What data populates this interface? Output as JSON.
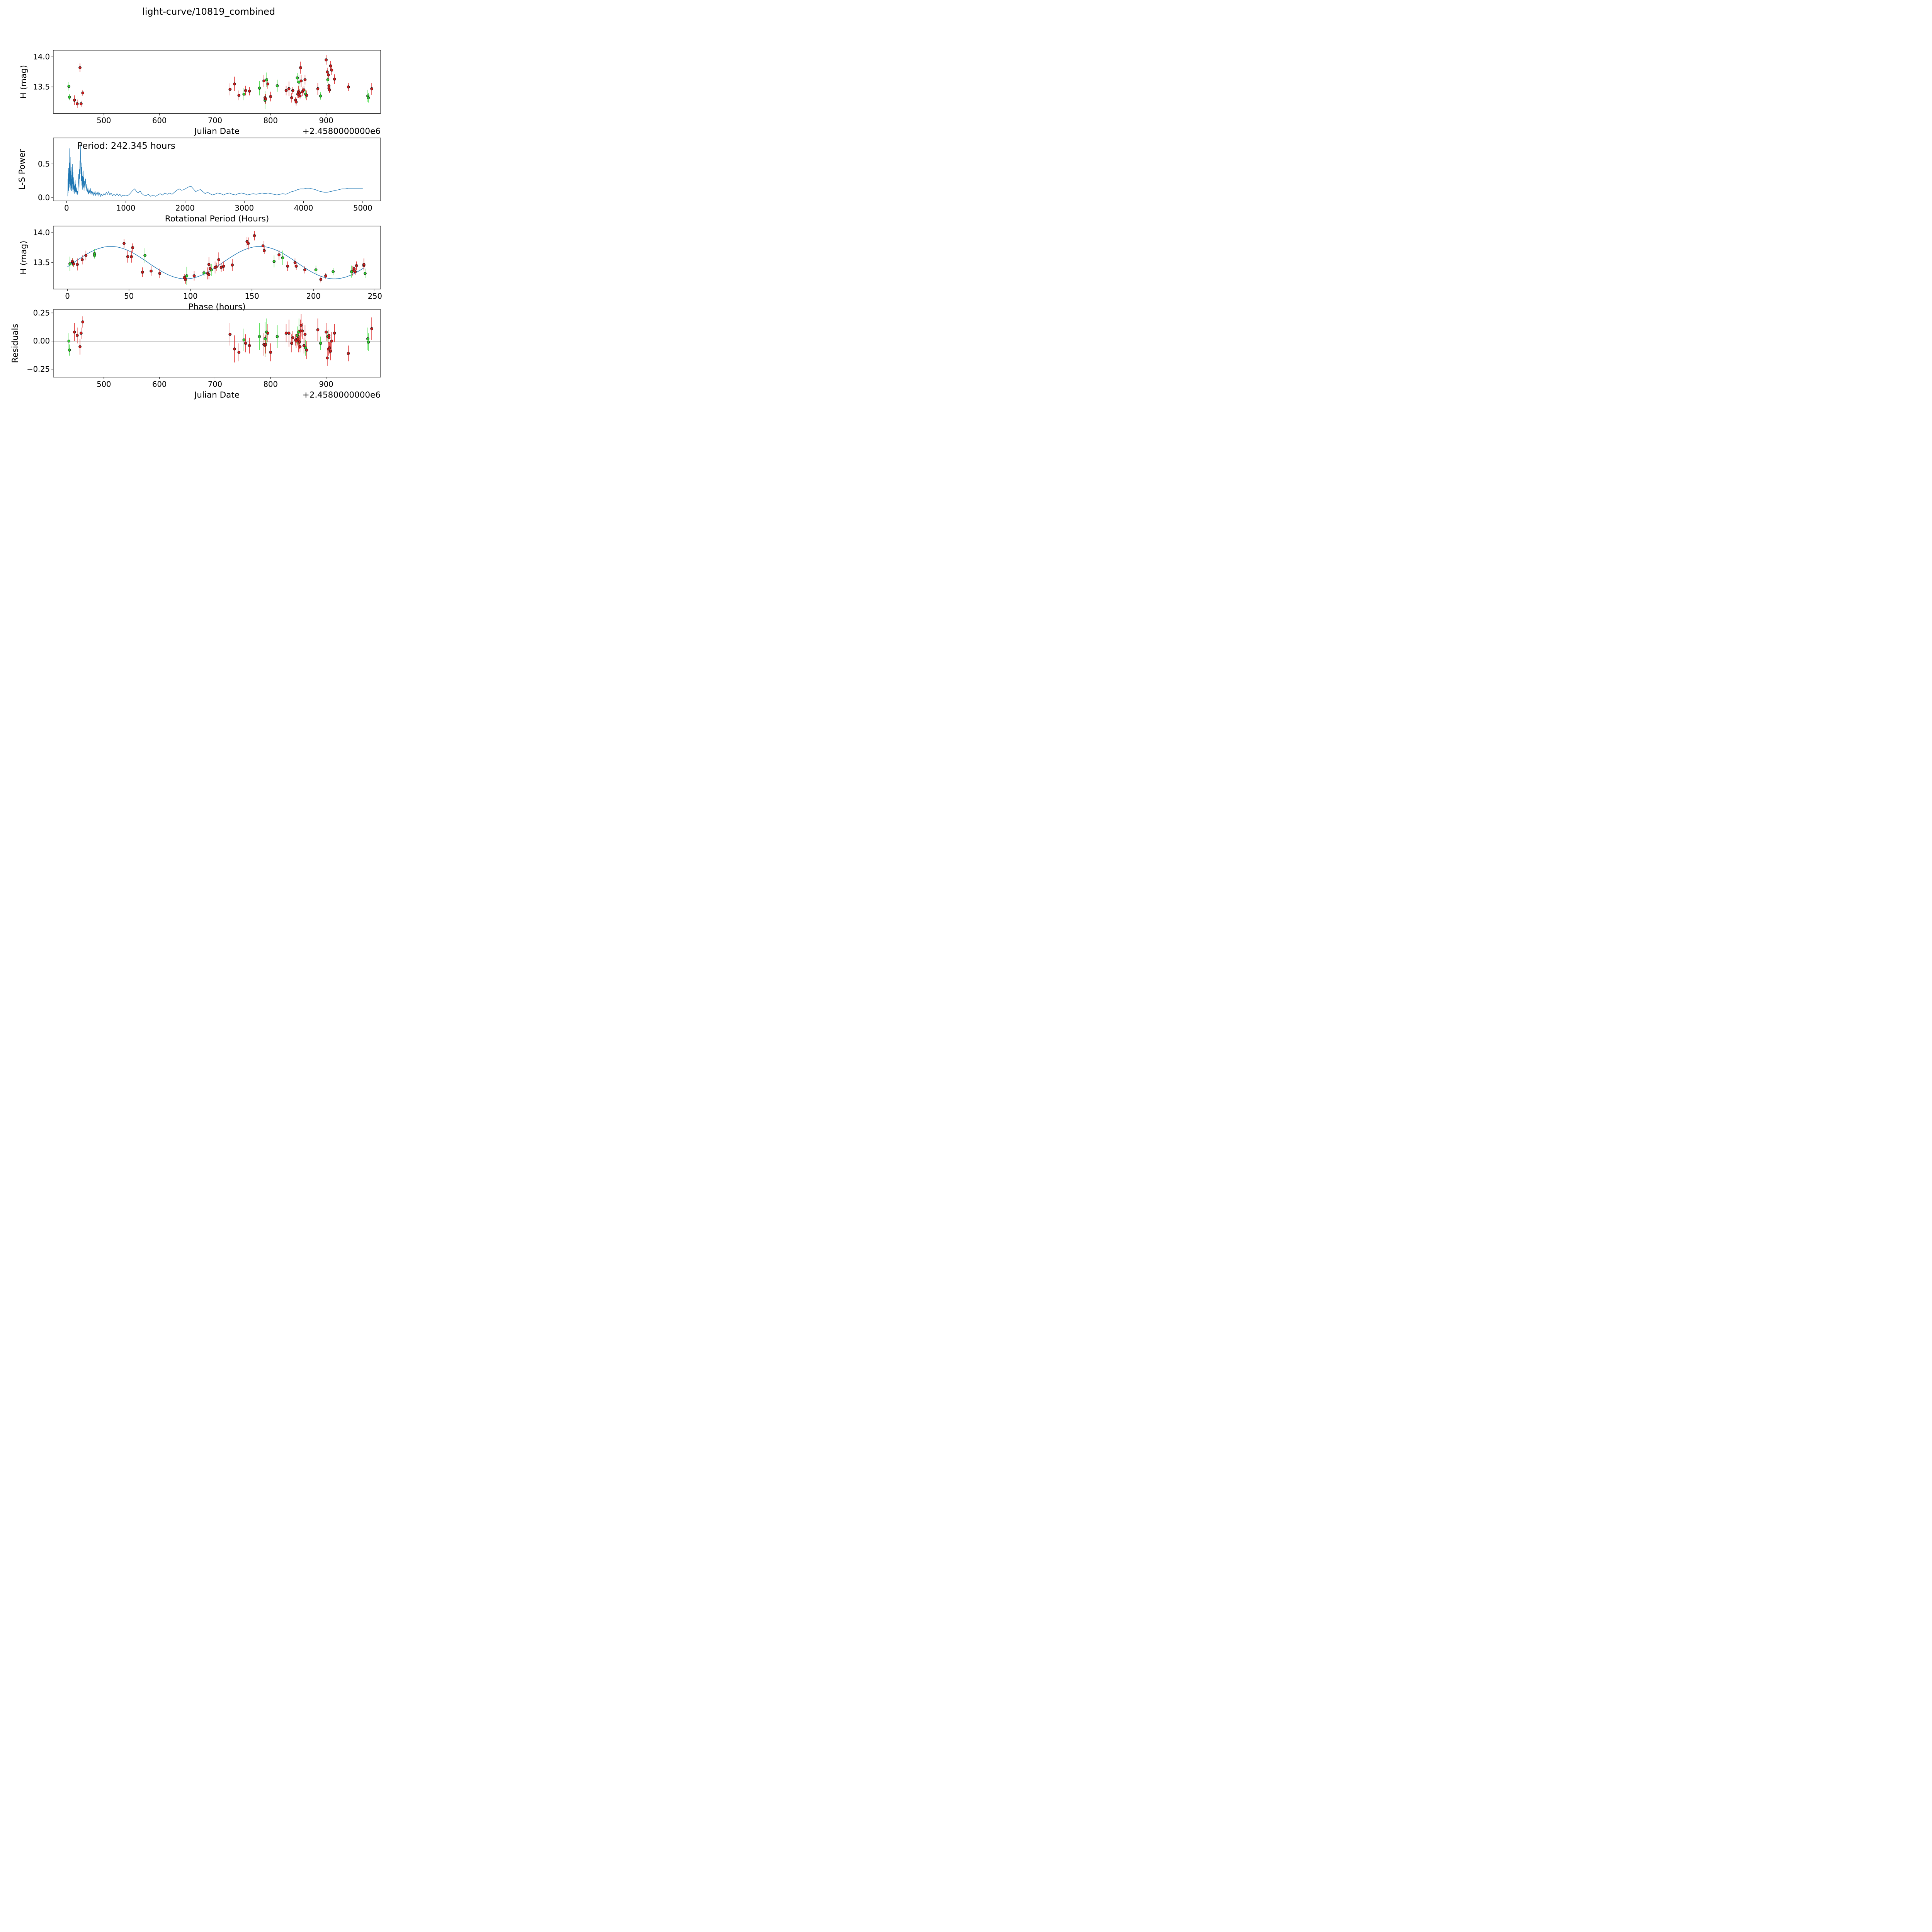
{
  "figure": {
    "title": "light-curve/10819_combined"
  },
  "colors": {
    "marker_red": "#d01a1a",
    "marker_green": "#2ed12e",
    "errorbar_red": "#e03030",
    "errorbar_green": "#57e057",
    "curve_blue": "#1f77b4",
    "axis_black": "#000000"
  },
  "observations_fields": [
    "color",
    "jd_minus_2458000000",
    "h_mag",
    "err_mag",
    "phase_hours",
    "residual_mag"
  ],
  "observations": [
    [
      "g",
      437,
      13.51,
      0.07,
      4,
      0.0
    ],
    [
      "g",
      438,
      13.33,
      0.05,
      111,
      -0.08
    ],
    [
      "r",
      447,
      13.28,
      0.08,
      103,
      0.08
    ],
    [
      "r",
      452,
      13.22,
      0.07,
      96,
      0.05
    ],
    [
      "r",
      457,
      13.82,
      0.07,
      46,
      -0.05
    ],
    [
      "r",
      459,
      13.22,
      0.05,
      206,
      0.07
    ],
    [
      "r",
      462,
      13.4,
      0.05,
      233,
      0.17
    ],
    [
      "r",
      727,
      13.46,
      0.1,
      134,
      0.06
    ],
    [
      "r",
      735,
      13.55,
      0.12,
      123,
      -0.07
    ],
    [
      "r",
      743,
      13.36,
      0.08,
      68,
      -0.1
    ],
    [
      "g",
      752,
      13.38,
      0.1,
      117,
      0.01
    ],
    [
      "r",
      755,
      13.44,
      0.08,
      127,
      -0.02
    ],
    [
      "r",
      762,
      13.43,
      0.07,
      121,
      -0.04
    ],
    [
      "g",
      780,
      13.48,
      0.12,
      2,
      0.04
    ],
    [
      "r",
      788,
      13.6,
      0.1,
      49,
      -0.03
    ],
    [
      "r",
      790,
      13.32,
      0.1,
      114,
      -0.04
    ],
    [
      "g",
      790,
      13.28,
      0.15,
      97,
      0.02
    ],
    [
      "r",
      791,
      13.3,
      0.08,
      115,
      -0.03
    ],
    [
      "g",
      793,
      13.62,
      0.12,
      63,
      0.08
    ],
    [
      "r",
      795,
      13.55,
      0.08,
      12,
      0.07
    ],
    [
      "r",
      800,
      13.34,
      0.08,
      61,
      -0.1
    ],
    [
      "g",
      812,
      13.52,
      0.1,
      168,
      0.04
    ],
    [
      "r",
      828,
      13.44,
      0.08,
      179,
      0.07
    ],
    [
      "r",
      833,
      13.47,
      0.12,
      115,
      0.07
    ],
    [
      "r",
      838,
      13.32,
      0.08,
      75,
      -0.02
    ],
    [
      "r",
      840,
      13.44,
      0.06,
      186,
      0.03
    ],
    [
      "r",
      845,
      13.28,
      0.05,
      210,
      0.01
    ],
    [
      "r",
      846,
      13.25,
      0.06,
      95,
      0.0
    ],
    [
      "g",
      848,
      13.65,
      0.08,
      22,
      0.05
    ],
    [
      "r",
      849,
      13.38,
      0.06,
      193,
      0.02
    ],
    [
      "r",
      850,
      13.42,
      0.1,
      120,
      0.0
    ],
    [
      "g",
      851,
      13.58,
      0.12,
      175,
      0.08
    ],
    [
      "r",
      852,
      13.4,
      0.06,
      116,
      -0.01
    ],
    [
      "r",
      853,
      13.35,
      0.05,
      234,
      -0.05
    ],
    [
      "r",
      854,
      13.82,
      0.1,
      147,
      0.09
    ],
    [
      "r",
      855,
      13.6,
      0.1,
      52,
      0.14
    ],
    [
      "r",
      857,
      13.42,
      0.07,
      125,
      0.09
    ],
    [
      "r",
      860,
      13.45,
      0.07,
      235,
      -0.04
    ],
    [
      "r",
      862,
      13.62,
      0.08,
      15,
      0.06
    ],
    [
      "g",
      863,
      13.38,
      0.07,
      202,
      -0.06
    ],
    [
      "r",
      865,
      13.36,
      0.08,
      232,
      -0.08
    ],
    [
      "r",
      885,
      13.47,
      0.1,
      8,
      0.1
    ],
    [
      "g",
      890,
      13.35,
      0.06,
      216,
      -0.02
    ],
    [
      "r",
      900,
      13.95,
      0.08,
      152,
      0.08
    ],
    [
      "r",
      902,
      13.75,
      0.07,
      53,
      -0.15
    ],
    [
      "g",
      903,
      13.62,
      0.05,
      22,
      0.04
    ],
    [
      "r",
      904,
      13.7,
      0.06,
      160,
      -0.07
    ],
    [
      "r",
      905,
      13.48,
      0.05,
      5,
      0.03
    ],
    [
      "r",
      905,
      13.52,
      0.05,
      4,
      0.05
    ],
    [
      "r",
      906,
      13.45,
      0.05,
      241,
      -0.06
    ],
    [
      "r",
      908,
      13.85,
      0.08,
      146,
      -0.09
    ],
    [
      "r",
      910,
      13.78,
      0.08,
      159,
      0.0
    ],
    [
      "r",
      915,
      13.63,
      0.08,
      172,
      0.07
    ],
    [
      "r",
      940,
      13.5,
      0.07,
      185,
      -0.11
    ],
    [
      "g",
      975,
      13.35,
      0.1,
      231,
      0.02
    ],
    [
      "g",
      976,
      13.32,
      0.08,
      242,
      -0.01
    ],
    [
      "r",
      982,
      13.47,
      0.1,
      241,
      0.11
    ]
  ],
  "chart_data": [
    {
      "type": "scatter",
      "id": "lightcurve",
      "xlabel": "Julian Date",
      "ylabel": "H (mag)",
      "x_offset_label": "+2.4580000000e6",
      "xlim": [
        409,
        998
      ],
      "ylim": [
        13.06,
        14.11
      ],
      "xticks": [
        {
          "v": 500,
          "label": "500"
        },
        {
          "v": 600,
          "label": "600"
        },
        {
          "v": 700,
          "label": "700"
        },
        {
          "v": 800,
          "label": "800"
        },
        {
          "v": 900,
          "label": "900"
        }
      ],
      "yticks": [
        {
          "v": 13.5,
          "label": "13.5"
        },
        {
          "v": 14.0,
          "label": "14.0"
        }
      ],
      "points_from": "observations",
      "x_field": "jd_minus_2458000000",
      "y_field": "h_mag",
      "err_field": "err_mag"
    },
    {
      "type": "line",
      "id": "periodogram",
      "annotation": "Period: 242.345 hours",
      "best_period_hours": 242.345,
      "xlabel": "Rotational Period (Hours)",
      "ylabel": "L-S Power",
      "xlim": [
        -224,
        5301
      ],
      "ylim": [
        -0.048,
        0.885
      ],
      "xticks": [
        {
          "v": 0,
          "label": "0"
        },
        {
          "v": 1000,
          "label": "1000"
        },
        {
          "v": 2000,
          "label": "2000"
        },
        {
          "v": 3000,
          "label": "3000"
        },
        {
          "v": 4000,
          "label": "4000"
        },
        {
          "v": 5000,
          "label": "5000"
        }
      ],
      "yticks": [
        {
          "v": 0.0,
          "label": "0.0"
        },
        {
          "v": 0.5,
          "label": "0.5"
        }
      ],
      "points": [
        [
          20,
          0.02
        ],
        [
          23,
          0.28
        ],
        [
          26,
          0.07
        ],
        [
          29,
          0.36
        ],
        [
          32,
          0.1
        ],
        [
          35,
          0.44
        ],
        [
          38,
          0.12
        ],
        [
          41,
          0.33
        ],
        [
          44,
          0.15
        ],
        [
          47,
          0.52
        ],
        [
          50,
          0.2
        ],
        [
          53,
          0.73
        ],
        [
          56,
          0.24
        ],
        [
          59,
          0.48
        ],
        [
          62,
          0.12
        ],
        [
          65,
          0.4
        ],
        [
          68,
          0.18
        ],
        [
          71,
          0.6
        ],
        [
          74,
          0.22
        ],
        [
          77,
          0.34
        ],
        [
          80,
          0.1
        ],
        [
          83,
          0.28
        ],
        [
          86,
          0.14
        ],
        [
          89,
          0.45
        ],
        [
          92,
          0.1
        ],
        [
          95,
          0.3
        ],
        [
          98,
          0.2
        ],
        [
          101,
          0.5
        ],
        [
          104,
          0.12
        ],
        [
          107,
          0.38
        ],
        [
          110,
          0.08
        ],
        [
          115,
          0.3
        ],
        [
          120,
          0.12
        ],
        [
          125,
          0.24
        ],
        [
          130,
          0.06
        ],
        [
          135,
          0.18
        ],
        [
          140,
          0.1
        ],
        [
          145,
          0.26
        ],
        [
          150,
          0.08
        ],
        [
          155,
          0.2
        ],
        [
          160,
          0.05
        ],
        [
          165,
          0.15
        ],
        [
          170,
          0.08
        ],
        [
          175,
          0.12
        ],
        [
          180,
          0.04
        ],
        [
          185,
          0.1
        ],
        [
          190,
          0.06
        ],
        [
          195,
          0.14
        ],
        [
          200,
          0.22
        ],
        [
          205,
          0.35
        ],
        [
          210,
          0.15
        ],
        [
          215,
          0.42
        ],
        [
          220,
          0.28
        ],
        [
          225,
          0.55
        ],
        [
          230,
          0.35
        ],
        [
          235,
          0.65
        ],
        [
          240,
          0.79
        ],
        [
          243,
          0.4
        ],
        [
          246,
          0.52
        ],
        [
          250,
          0.25
        ],
        [
          254,
          0.45
        ],
        [
          258,
          0.18
        ],
        [
          262,
          0.38
        ],
        [
          266,
          0.12
        ],
        [
          270,
          0.32
        ],
        [
          275,
          0.2
        ],
        [
          280,
          0.4
        ],
        [
          285,
          0.15
        ],
        [
          290,
          0.3
        ],
        [
          295,
          0.1
        ],
        [
          300,
          0.25
        ],
        [
          310,
          0.15
        ],
        [
          320,
          0.28
        ],
        [
          330,
          0.1
        ],
        [
          340,
          0.2
        ],
        [
          350,
          0.08
        ],
        [
          360,
          0.15
        ],
        [
          370,
          0.05
        ],
        [
          380,
          0.12
        ],
        [
          390,
          0.07
        ],
        [
          400,
          0.14
        ],
        [
          410,
          0.05
        ],
        [
          420,
          0.1
        ],
        [
          430,
          0.04
        ],
        [
          440,
          0.09
        ],
        [
          450,
          0.03
        ],
        [
          460,
          0.08
        ],
        [
          470,
          0.05
        ],
        [
          480,
          0.1
        ],
        [
          490,
          0.03
        ],
        [
          500,
          0.07
        ],
        [
          515,
          0.04
        ],
        [
          530,
          0.09
        ],
        [
          545,
          0.03
        ],
        [
          560,
          0.07
        ],
        [
          575,
          0.02
        ],
        [
          590,
          0.05
        ],
        [
          610,
          0.03
        ],
        [
          630,
          0.06
        ],
        [
          650,
          0.04
        ],
        [
          670,
          0.08
        ],
        [
          690,
          0.05
        ],
        [
          710,
          0.09
        ],
        [
          730,
          0.04
        ],
        [
          750,
          0.07
        ],
        [
          775,
          0.03
        ],
        [
          800,
          0.05
        ],
        [
          825,
          0.03
        ],
        [
          850,
          0.06
        ],
        [
          875,
          0.03
        ],
        [
          900,
          0.05
        ],
        [
          925,
          0.02
        ],
        [
          950,
          0.04
        ],
        [
          975,
          0.03
        ],
        [
          1000,
          0.04
        ],
        [
          1030,
          0.03
        ],
        [
          1060,
          0.05
        ],
        [
          1090,
          0.08
        ],
        [
          1120,
          0.11
        ],
        [
          1150,
          0.13
        ],
        [
          1180,
          0.09
        ],
        [
          1210,
          0.07
        ],
        [
          1240,
          0.1
        ],
        [
          1270,
          0.06
        ],
        [
          1300,
          0.04
        ],
        [
          1340,
          0.03
        ],
        [
          1380,
          0.05
        ],
        [
          1420,
          0.02
        ],
        [
          1460,
          0.04
        ],
        [
          1500,
          0.02
        ],
        [
          1540,
          0.04
        ],
        [
          1580,
          0.06
        ],
        [
          1620,
          0.04
        ],
        [
          1660,
          0.07
        ],
        [
          1700,
          0.05
        ],
        [
          1740,
          0.07
        ],
        [
          1780,
          0.05
        ],
        [
          1820,
          0.08
        ],
        [
          1860,
          0.11
        ],
        [
          1900,
          0.13
        ],
        [
          1940,
          0.11
        ],
        [
          1980,
          0.12
        ],
        [
          2020,
          0.14
        ],
        [
          2060,
          0.16
        ],
        [
          2100,
          0.17
        ],
        [
          2140,
          0.13
        ],
        [
          2180,
          0.09
        ],
        [
          2220,
          0.11
        ],
        [
          2260,
          0.12
        ],
        [
          2300,
          0.09
        ],
        [
          2340,
          0.06
        ],
        [
          2380,
          0.08
        ],
        [
          2420,
          0.06
        ],
        [
          2460,
          0.04
        ],
        [
          2500,
          0.05
        ],
        [
          2550,
          0.07
        ],
        [
          2600,
          0.06
        ],
        [
          2650,
          0.04
        ],
        [
          2700,
          0.06
        ],
        [
          2750,
          0.07
        ],
        [
          2800,
          0.05
        ],
        [
          2850,
          0.04
        ],
        [
          2900,
          0.06
        ],
        [
          2950,
          0.07
        ],
        [
          3000,
          0.06
        ],
        [
          3050,
          0.04
        ],
        [
          3100,
          0.05
        ],
        [
          3150,
          0.06
        ],
        [
          3200,
          0.05
        ],
        [
          3250,
          0.06
        ],
        [
          3300,
          0.07
        ],
        [
          3350,
          0.06
        ],
        [
          3400,
          0.07
        ],
        [
          3450,
          0.06
        ],
        [
          3500,
          0.05
        ],
        [
          3550,
          0.04
        ],
        [
          3600,
          0.05
        ],
        [
          3650,
          0.06
        ],
        [
          3700,
          0.05
        ],
        [
          3750,
          0.07
        ],
        [
          3800,
          0.09
        ],
        [
          3850,
          0.1
        ],
        [
          3900,
          0.12
        ],
        [
          3950,
          0.13
        ],
        [
          4000,
          0.13
        ],
        [
          4050,
          0.14
        ],
        [
          4100,
          0.14
        ],
        [
          4150,
          0.13
        ],
        [
          4200,
          0.12
        ],
        [
          4250,
          0.1
        ],
        [
          4300,
          0.09
        ],
        [
          4350,
          0.08
        ],
        [
          4400,
          0.08
        ],
        [
          4450,
          0.09
        ],
        [
          4500,
          0.1
        ],
        [
          4550,
          0.11
        ],
        [
          4600,
          0.12
        ],
        [
          4650,
          0.13
        ],
        [
          4700,
          0.13
        ],
        [
          4750,
          0.14
        ],
        [
          4800,
          0.14
        ],
        [
          4850,
          0.14
        ],
        [
          4900,
          0.14
        ],
        [
          4950,
          0.14
        ],
        [
          5000,
          0.14
        ]
      ]
    },
    {
      "type": "scatter",
      "id": "phased",
      "xlabel": "Phase (hours)",
      "ylabel": "H (mag)",
      "xlim": [
        -11.5,
        254.6
      ],
      "ylim": [
        13.06,
        14.11
      ],
      "xticks": [
        {
          "v": 0,
          "label": "0"
        },
        {
          "v": 50,
          "label": "50"
        },
        {
          "v": 100,
          "label": "100"
        },
        {
          "v": 150,
          "label": "150"
        },
        {
          "v": 200,
          "label": "200"
        },
        {
          "v": 250,
          "label": "250"
        }
      ],
      "yticks": [
        {
          "v": 13.5,
          "label": "13.5"
        },
        {
          "v": 14.0,
          "label": "14.0"
        }
      ],
      "points_from": "observations",
      "x_field": "phase_hours",
      "y_field": "h_mag",
      "err_field": "err_mag",
      "fit": {
        "mean": 13.5,
        "amplitude": 0.27,
        "period_hours": 121.17,
        "phase_zero_hours": 5,
        "phase_range": [
          0,
          242.345
        ]
      }
    },
    {
      "type": "scatter",
      "id": "residuals",
      "xlabel": "Julian Date",
      "ylabel": "Residuals",
      "x_offset_label": "+2.4580000000e6",
      "xlim": [
        409,
        998
      ],
      "ylim": [
        -0.32,
        0.28
      ],
      "xticks": [
        {
          "v": 500,
          "label": "500"
        },
        {
          "v": 600,
          "label": "600"
        },
        {
          "v": 700,
          "label": "700"
        },
        {
          "v": 800,
          "label": "800"
        },
        {
          "v": 900,
          "label": "900"
        }
      ],
      "yticks": [
        {
          "v": -0.25,
          "label": "−0.25"
        },
        {
          "v": 0.0,
          "label": "0.00"
        },
        {
          "v": 0.25,
          "label": "0.25"
        }
      ],
      "zero_line": true,
      "points_from": "observations",
      "x_field": "jd_minus_2458000000",
      "y_field": "residual_mag",
      "err_field": "err_mag"
    }
  ]
}
